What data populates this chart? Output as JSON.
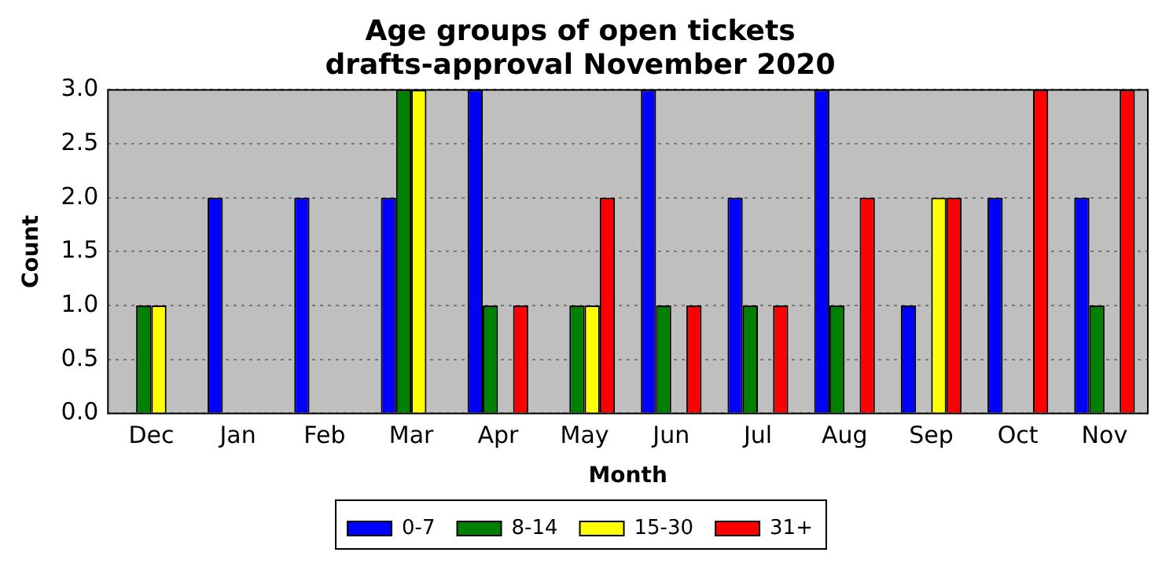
{
  "chart_data": {
    "type": "bar",
    "title": "Age groups of open tickets",
    "subtitle": "drafts-approval November 2020",
    "xlabel": "Month",
    "ylabel": "Count",
    "categories": [
      "Dec",
      "Jan",
      "Feb",
      "Mar",
      "Apr",
      "May",
      "Jun",
      "Jul",
      "Aug",
      "Sep",
      "Oct",
      "Nov"
    ],
    "series": [
      {
        "name": "0-7",
        "color": "#0000ff",
        "values": [
          0,
          2,
          2,
          2,
          3,
          0,
          3,
          2,
          3,
          1,
          2,
          2
        ]
      },
      {
        "name": "8-14",
        "color": "#008000",
        "values": [
          1,
          0,
          0,
          3,
          1,
          1,
          1,
          1,
          1,
          0,
          0,
          1
        ]
      },
      {
        "name": "15-30",
        "color": "#ffff00",
        "values": [
          1,
          0,
          0,
          3,
          0,
          1,
          0,
          0,
          0,
          2,
          0,
          0
        ]
      },
      {
        "name": "31+",
        "color": "#ff0000",
        "values": [
          0,
          0,
          0,
          0,
          1,
          2,
          1,
          1,
          2,
          2,
          3,
          3
        ]
      }
    ],
    "ylim": [
      0,
      3
    ],
    "yticks": [
      {
        "value": 0,
        "label": "0.0"
      },
      0.5,
      {
        "value": 1,
        "label": "1.0"
      },
      1.5,
      {
        "value": 2,
        "label": "2.0"
      },
      2.5,
      {
        "value": 3,
        "label": "3.0"
      }
    ],
    "grid": "y",
    "legend": "bottom"
  }
}
